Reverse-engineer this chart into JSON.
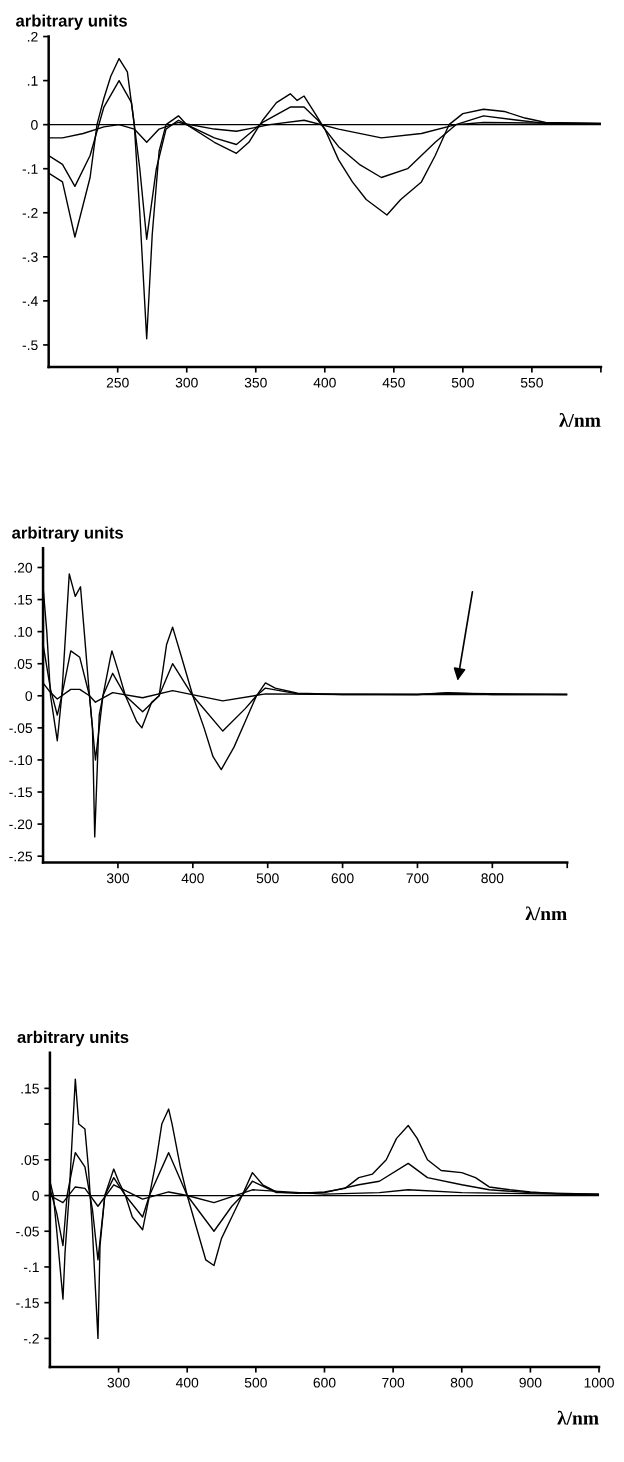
{
  "chart_data": [
    {
      "type": "line",
      "ylabel": "arbitrary units",
      "xlabel": "λ/nm",
      "xlim": [
        200,
        600
      ],
      "ylim": [
        -0.55,
        0.2
      ],
      "xticks": [
        250,
        300,
        350,
        400,
        450,
        500,
        550,
        {
          "value": 600,
          "label": null
        }
      ],
      "yticks": [
        {
          "value": 0.2,
          "label": ".2"
        },
        {
          "value": 0.1,
          "label": ".1"
        },
        0,
        {
          "value": -0.1,
          "label": "-.1"
        },
        {
          "value": -0.2,
          "label": "-.2"
        },
        {
          "value": -0.3,
          "label": "-.3"
        },
        {
          "value": -0.4,
          "label": "-.4"
        },
        {
          "value": -0.5,
          "label": "-.5"
        }
      ],
      "ref_lines": [
        {
          "axis": "y",
          "value": 0,
          "color": "#000000"
        }
      ],
      "series": [
        {
          "color": "#000000",
          "x": [
            200,
            210,
            219,
            230,
            235,
            240,
            245,
            251,
            257,
            262,
            266,
            271,
            275,
            280,
            285,
            294,
            300,
            320,
            336,
            345,
            355,
            365,
            375,
            380,
            385,
            392,
            400,
            410,
            420,
            430,
            445,
            455,
            470,
            480,
            490,
            500,
            515,
            530,
            545,
            560,
            600
          ],
          "values": [
            -0.11,
            -0.13,
            -0.255,
            -0.12,
            0.0,
            0.06,
            0.11,
            0.15,
            0.12,
            0.0,
            -0.2,
            -0.486,
            -0.25,
            -0.06,
            0.0,
            0.02,
            0.0,
            -0.04,
            -0.065,
            -0.04,
            0.01,
            0.05,
            0.07,
            0.055,
            0.065,
            0.03,
            -0.01,
            -0.08,
            -0.13,
            -0.17,
            -0.205,
            -0.17,
            -0.13,
            -0.07,
            0.0,
            0.025,
            0.035,
            0.03,
            0.015,
            0.005,
            0.003
          ]
        },
        {
          "color": "#000000",
          "x": [
            200,
            210,
            219,
            230,
            240,
            251,
            260,
            266,
            271,
            278,
            285,
            294,
            300,
            320,
            336,
            355,
            375,
            385,
            395,
            410,
            425,
            441,
            460,
            480,
            495,
            515,
            540,
            560,
            600
          ],
          "values": [
            -0.07,
            -0.09,
            -0.14,
            -0.07,
            0.04,
            0.1,
            0.05,
            -0.1,
            -0.26,
            -0.1,
            -0.01,
            0.01,
            0.0,
            -0.03,
            -0.045,
            0.005,
            0.04,
            0.04,
            0.01,
            -0.05,
            -0.09,
            -0.12,
            -0.1,
            -0.04,
            0.0,
            0.02,
            0.01,
            0.003,
            0.003
          ]
        },
        {
          "color": "#000000",
          "x": [
            200,
            210,
            225,
            240,
            251,
            262,
            271,
            280,
            294,
            320,
            336,
            360,
            385,
            410,
            441,
            470,
            495,
            515,
            600
          ],
          "values": [
            -0.03,
            -0.03,
            -0.02,
            -0.005,
            0.0,
            -0.01,
            -0.04,
            -0.01,
            0.005,
            -0.01,
            -0.015,
            0.0,
            0.01,
            -0.01,
            -0.03,
            -0.02,
            0.0,
            0.005,
            0.002
          ]
        }
      ]
    },
    {
      "type": "line",
      "ylabel": "arbitrary units",
      "xlabel": "λ/nm",
      "xlim": [
        200,
        900
      ],
      "ylim": [
        -0.26,
        0.23
      ],
      "xticks": [
        300,
        400,
        500,
        600,
        700,
        800,
        {
          "value": 900,
          "label": null
        }
      ],
      "yticks": [
        {
          "value": 0.2,
          "label": ".20"
        },
        {
          "value": 0.15,
          "label": ".15"
        },
        {
          "value": 0.1,
          "label": ".10"
        },
        {
          "value": 0.05,
          "label": ".05"
        },
        0,
        {
          "value": -0.05,
          "label": "-.05"
        },
        {
          "value": -0.1,
          "label": "-.10"
        },
        {
          "value": -0.15,
          "label": "-.15"
        },
        {
          "value": -0.2,
          "label": "-.20"
        },
        {
          "value": -0.25,
          "label": "-.25"
        }
      ],
      "series": [
        {
          "color": "#000000",
          "x": [
            200,
            205,
            210,
            219,
            225,
            235,
            243,
            250,
            255,
            262,
            266,
            269,
            275,
            280,
            290,
            292,
            300,
            310,
            325,
            332,
            345,
            355,
            365,
            373,
            385,
            400,
            415,
            427,
            438,
            455,
            470,
            485,
            497,
            510,
            540,
            600,
            700,
            740,
            800,
            900
          ],
          "values": [
            0.17,
            0.1,
            0.0,
            -0.07,
            0.0,
            0.19,
            0.155,
            0.17,
            0.1,
            0.0,
            -0.05,
            -0.22,
            -0.03,
            0.0,
            0.06,
            0.07,
            0.04,
            0.0,
            -0.04,
            -0.05,
            -0.01,
            0.0,
            0.08,
            0.107,
            0.06,
            0.0,
            -0.05,
            -0.095,
            -0.115,
            -0.08,
            -0.04,
            0.0,
            0.02,
            0.012,
            0.004,
            0.002,
            0.002,
            0.005,
            0.002,
            0.002
          ]
        },
        {
          "color": "#000000",
          "x": [
            200,
            210,
            219,
            225,
            237,
            249,
            262,
            270,
            280,
            293,
            310,
            333,
            355,
            373,
            400,
            440,
            470,
            485,
            497,
            540,
            700,
            740,
            900
          ],
          "values": [
            0.08,
            0.01,
            -0.03,
            0.0,
            0.07,
            0.06,
            0.0,
            -0.1,
            0.0,
            0.035,
            0.0,
            -0.025,
            0.0,
            0.05,
            0.0,
            -0.055,
            -0.02,
            0.0,
            0.012,
            0.003,
            0.002,
            0.004,
            0.002
          ]
        },
        {
          "color": "#000000",
          "x": [
            200,
            210,
            219,
            237,
            249,
            262,
            270,
            293,
            333,
            373,
            440,
            497,
            600,
            900
          ],
          "values": [
            0.02,
            0.005,
            -0.005,
            0.01,
            0.01,
            0.0,
            -0.01,
            0.005,
            -0.003,
            0.008,
            -0.008,
            0.003,
            0.002,
            0.002
          ]
        }
      ]
    },
    {
      "type": "line",
      "ylabel": "arbitrary units",
      "xlabel": "λ/nm",
      "xlim": [
        200,
        1000
      ],
      "ylim": [
        -0.24,
        0.2
      ],
      "xticks": [
        300,
        400,
        500,
        600,
        700,
        800,
        900,
        1000
      ],
      "yticks": [
        {
          "value": 0.15,
          "label": ".15"
        },
        {
          "value": 0.1,
          "label": null
        },
        {
          "value": 0.05,
          "label": ".05"
        },
        0,
        {
          "value": -0.05,
          "label": "-.05"
        },
        {
          "value": -0.1,
          "label": "-.1"
        },
        {
          "value": -0.15,
          "label": "-.15"
        },
        {
          "value": -0.2,
          "label": "-.2"
        }
      ],
      "ref_lines": [
        {
          "axis": "y",
          "value": 0,
          "color": "#000000"
        }
      ],
      "series": [
        {
          "color": "#000000",
          "x": [
            200,
            205,
            210,
            219,
            222,
            228,
            237,
            242,
            251,
            256,
            262,
            270,
            273,
            280,
            293,
            300,
            310,
            320,
            335,
            345,
            355,
            363,
            373,
            378,
            390,
            400,
            415,
            427,
            439,
            450,
            465,
            480,
            495,
            510,
            530,
            560,
            600,
            630,
            650,
            670,
            690,
            705,
            722,
            735,
            750,
            770,
            800,
            820,
            840,
            870,
            900,
            950,
            1000
          ],
          "values": [
            0.02,
            0.0,
            -0.05,
            -0.145,
            -0.08,
            0.0,
            0.163,
            0.1,
            0.093,
            0.04,
            -0.05,
            -0.2,
            -0.07,
            0.0,
            0.037,
            0.02,
            0.0,
            -0.03,
            -0.048,
            0.0,
            0.05,
            0.1,
            0.121,
            0.1,
            0.04,
            0.0,
            -0.05,
            -0.09,
            -0.098,
            -0.06,
            -0.03,
            0.0,
            0.032,
            0.015,
            0.005,
            0.003,
            0.005,
            0.01,
            0.025,
            0.03,
            0.05,
            0.08,
            0.098,
            0.08,
            0.05,
            0.035,
            0.032,
            0.025,
            0.012,
            0.008,
            0.005,
            0.002,
            0.002
          ]
        },
        {
          "color": "#000000",
          "x": [
            200,
            210,
            219,
            225,
            237,
            251,
            262,
            270,
            280,
            293,
            310,
            335,
            345,
            373,
            400,
            439,
            465,
            480,
            495,
            530,
            600,
            650,
            680,
            722,
            750,
            800,
            840,
            900,
            1000
          ],
          "values": [
            0.01,
            -0.025,
            -0.07,
            0.0,
            0.06,
            0.04,
            -0.02,
            -0.09,
            0.0,
            0.025,
            0.0,
            -0.03,
            0.0,
            0.06,
            0.0,
            -0.05,
            -0.015,
            0.0,
            0.02,
            0.004,
            0.004,
            0.015,
            0.02,
            0.045,
            0.025,
            0.015,
            0.008,
            0.004,
            0.002
          ]
        },
        {
          "color": "#000000",
          "x": [
            200,
            219,
            237,
            251,
            270,
            293,
            335,
            373,
            400,
            439,
            495,
            600,
            680,
            722,
            800,
            1000
          ],
          "values": [
            0.0,
            -0.01,
            0.012,
            0.01,
            -0.015,
            0.015,
            -0.005,
            0.005,
            0.0,
            -0.01,
            0.008,
            0.002,
            0.004,
            0.008,
            0.004,
            0.001
          ]
        }
      ]
    }
  ]
}
